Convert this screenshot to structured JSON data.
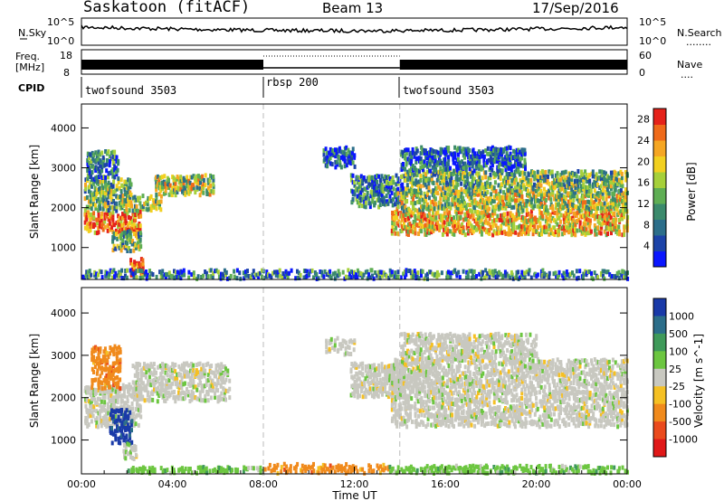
{
  "header": {
    "site": "Saskatoon (fitACF)",
    "beam": "Beam 13",
    "date": "17/Sep/2016"
  },
  "strip_nsky": {
    "left_label": "N.Sky",
    "left_ticks": [
      "10^5",
      "10^0"
    ],
    "right_ticks": [
      "10^5",
      "10^0"
    ],
    "right_label": "N.Search",
    "right_legend": "........"
  },
  "strip_freq": {
    "left_label_top": "Freq.",
    "left_label_bottom": "[MHz]",
    "left_ticks": [
      "18",
      "8"
    ],
    "right_ticks": [
      "60",
      "0"
    ],
    "right_label": "Nave",
    "right_legend": "....",
    "high_segments_hours": [
      [
        0,
        8
      ],
      [
        14,
        24
      ]
    ],
    "low_segment_hours": [
      8,
      14
    ]
  },
  "cpid": {
    "label": "CPID",
    "segments": [
      {
        "name": "twofsound 3503",
        "start_hour": 0
      },
      {
        "name": "rbsp 200",
        "start_hour": 8
      },
      {
        "name": "twofsound 3503",
        "start_hour": 14
      }
    ]
  },
  "chart_data": [
    {
      "type": "heatmap",
      "title": "",
      "xlabel": "",
      "ylabel": "Slant Range [km]",
      "xlim_hours": [
        0,
        24
      ],
      "ylim": [
        200,
        4600
      ],
      "y_ticks": [
        1000,
        2000,
        3000,
        4000
      ],
      "colorbar": {
        "label": "Power [dB]",
        "ticks": [
          4,
          8,
          12,
          16,
          20,
          24,
          28
        ],
        "range": [
          0,
          30
        ],
        "colors": [
          "#0a16ff",
          "#1c43a8",
          "#2c6e8a",
          "#3b8a6c",
          "#5fae54",
          "#a6d03a",
          "#f2d020",
          "#f5a623",
          "#ef6a1a",
          "#e5221a"
        ]
      },
      "dashed_lines_hours": [
        8,
        14
      ],
      "echo_bands": [
        {
          "h0": 0.1,
          "h1": 2.6,
          "r0": 1350,
          "r1": 1900,
          "level": 0.85
        },
        {
          "h0": 0.1,
          "h1": 2.2,
          "r0": 1900,
          "r1": 2700,
          "level": 0.45
        },
        {
          "h0": 0.2,
          "h1": 1.6,
          "r0": 2700,
          "r1": 3400,
          "level": 0.25
        },
        {
          "h0": 2.2,
          "h1": 3.5,
          "r0": 1900,
          "r1": 2300,
          "level": 0.5
        },
        {
          "h0": 3.2,
          "h1": 5.8,
          "r0": 2300,
          "r1": 2800,
          "level": 0.55
        },
        {
          "h0": 1.3,
          "h1": 2.6,
          "r0": 900,
          "r1": 1400,
          "level": 0.45
        },
        {
          "h0": 2.1,
          "h1": 2.7,
          "r0": 250,
          "r1": 700,
          "level": 0.9
        },
        {
          "h0": 10.6,
          "h1": 12.0,
          "r0": 3000,
          "r1": 3500,
          "level": 0.2
        },
        {
          "h0": 11.8,
          "h1": 14.2,
          "r0": 2000,
          "r1": 2800,
          "level": 0.3
        },
        {
          "h0": 13.6,
          "h1": 24.0,
          "r0": 1300,
          "r1": 1900,
          "level": 0.7
        },
        {
          "h0": 13.8,
          "h1": 24.0,
          "r0": 1900,
          "r1": 2400,
          "level": 0.55
        },
        {
          "h0": 14.2,
          "h1": 24.0,
          "r0": 2400,
          "r1": 2900,
          "level": 0.45
        },
        {
          "h0": 14.0,
          "h1": 19.5,
          "r0": 2900,
          "r1": 3500,
          "level": 0.2
        },
        {
          "h0": 0.0,
          "h1": 24.0,
          "r0": 200,
          "r1": 420,
          "level": 0.3
        }
      ]
    },
    {
      "type": "heatmap",
      "title": "",
      "xlabel": "Time UT",
      "ylabel": "Slant Range [km]",
      "xlim_hours": [
        0,
        24
      ],
      "ylim": [
        200,
        4600
      ],
      "y_ticks": [
        1000,
        2000,
        3000,
        4000
      ],
      "x_tick_labels": [
        "00:00",
        "04:00",
        "08:00",
        "12:00",
        "16:00",
        "20:00",
        "00:00"
      ],
      "colorbar": {
        "label": "Velocity [m s^-1]",
        "ticks": [
          "1000",
          "500",
          "100",
          "25",
          "-25",
          "-100",
          "-500",
          "-1000"
        ],
        "colors": [
          "#1a3aa8",
          "#2c6e8a",
          "#3f9a5a",
          "#6cc640",
          "#c8c8c0",
          "#f5c023",
          "#f08a1c",
          "#ea4a1c",
          "#e01818"
        ]
      },
      "dashed_lines_hours": [
        8,
        14
      ],
      "echo_bands": [
        {
          "h0": 0.1,
          "h1": 2.6,
          "r0": 1300,
          "r1": 2300,
          "color_index": 4
        },
        {
          "h0": 0.4,
          "h1": 1.7,
          "r0": 2200,
          "r1": 3200,
          "color_index": 6
        },
        {
          "h0": 1.2,
          "h1": 2.2,
          "r0": 900,
          "r1": 1700,
          "color_index": 0
        },
        {
          "h0": 2.2,
          "h1": 6.5,
          "r0": 1900,
          "r1": 2800,
          "color_index": 4
        },
        {
          "h0": 1.8,
          "h1": 2.4,
          "r0": 500,
          "r1": 900,
          "color_index": 4
        },
        {
          "h0": 10.7,
          "h1": 12.0,
          "r0": 3000,
          "r1": 3400,
          "color_index": 4
        },
        {
          "h0": 11.8,
          "h1": 14.2,
          "r0": 2000,
          "r1": 2800,
          "color_index": 4
        },
        {
          "h0": 13.6,
          "h1": 24.0,
          "r0": 1300,
          "r1": 2900,
          "color_index": 4
        },
        {
          "h0": 14.0,
          "h1": 20.0,
          "r0": 2900,
          "r1": 3500,
          "color_index": 4
        },
        {
          "h0": 2.0,
          "h1": 8.0,
          "r0": 200,
          "r1": 350,
          "color_index": 3
        },
        {
          "h0": 8.0,
          "h1": 13.5,
          "r0": 200,
          "r1": 420,
          "color_index": 6
        },
        {
          "h0": 13.5,
          "h1": 24.0,
          "r0": 200,
          "r1": 380,
          "color_index": 3
        }
      ]
    }
  ]
}
